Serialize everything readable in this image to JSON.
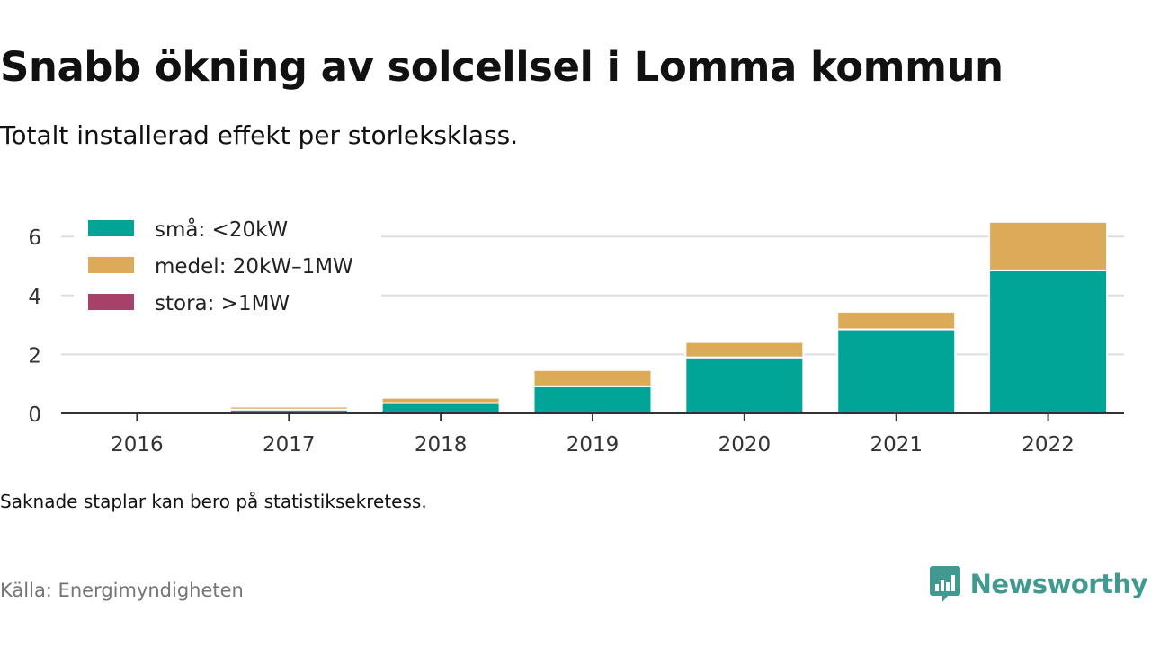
{
  "title": "Snabb ökning av solcellsel i Lomma kommun",
  "subtitle": "Totalt installerad effekt per storleksklass.",
  "note": "Saknade staplar kan bero på statistiksekretess.",
  "source": "Källa: Energimyndigheten",
  "brand": {
    "name": "Newsworthy",
    "icon": "newsworthy-logo-icon",
    "color": "#41998f"
  },
  "chart_data": {
    "type": "bar",
    "stacked": true,
    "categories": [
      "2016",
      "2017",
      "2018",
      "2019",
      "2020",
      "2021",
      "2022"
    ],
    "series": [
      {
        "name": "små: <20kW",
        "color": "#00a598",
        "values": [
          0.02,
          0.13,
          0.35,
          0.92,
          1.9,
          2.85,
          4.85
        ]
      },
      {
        "name": "medel: 20kW–1MW",
        "color": "#dbab5a",
        "values": [
          0.0,
          0.1,
          0.18,
          0.55,
          0.52,
          0.6,
          1.65
        ]
      },
      {
        "name": "stora: >1MW",
        "color": "#a8416a",
        "values": [
          0,
          0,
          0,
          0,
          0,
          0,
          0
        ]
      }
    ],
    "yticks": [
      0,
      2,
      4,
      6
    ],
    "ylim": [
      0,
      7
    ],
    "grid": true,
    "legend_position": "top-left"
  }
}
